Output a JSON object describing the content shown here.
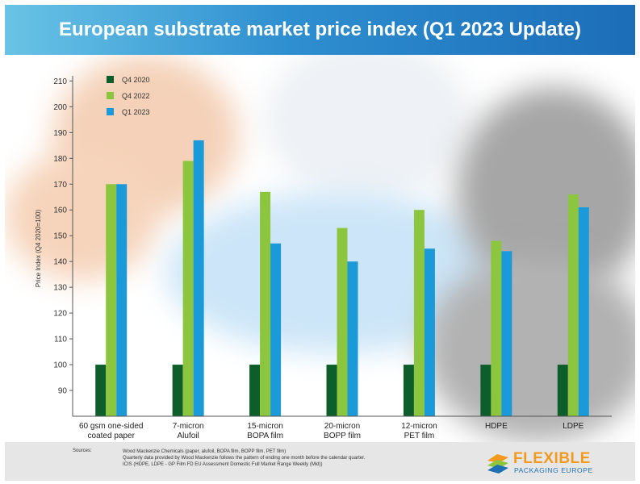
{
  "header": {
    "title": "European substrate market price index (Q1 2023 Update)"
  },
  "colors": {
    "banner_start": "#69c3e6",
    "banner_end": "#1c6db8",
    "footer_bg": "#e6e6e6"
  },
  "chart_data": {
    "type": "bar",
    "title": "",
    "ylabel": "Price Index (Q4 2020=100)",
    "xlabel": "",
    "ylim": [
      80,
      212
    ],
    "yticks": [
      90,
      100,
      110,
      120,
      130,
      140,
      150,
      160,
      170,
      180,
      190,
      200,
      210
    ],
    "grid": false,
    "legend_position": "top-left",
    "categories": [
      [
        "60 gsm one-sided",
        "coated paper"
      ],
      [
        "7-micron",
        "Alufoil"
      ],
      [
        "15-micron",
        "BOPA film"
      ],
      [
        "20-micron",
        "BOPP film"
      ],
      [
        "12-micron",
        "PET film"
      ],
      [
        "HDPE"
      ],
      [
        "LDPE"
      ]
    ],
    "series": [
      {
        "name": "Q4 2020",
        "color": "#0e5e2c",
        "values": [
          100,
          100,
          100,
          100,
          100,
          100,
          100
        ]
      },
      {
        "name": "Q4 2022",
        "color": "#8cc63f",
        "values": [
          170,
          179,
          167,
          153,
          160,
          148,
          166
        ]
      },
      {
        "name": "Q1 2023",
        "color": "#1a9ad8",
        "values": [
          170,
          187,
          147,
          140,
          145,
          144,
          161
        ]
      }
    ]
  },
  "footer": {
    "sources_label": "Sources:",
    "source_lines": [
      "Wood Mackenzie Chemicals (paper, alufoil, BOPA film, BOPP film, PET film)",
      "Quarterly data provided by Wood Mackenzie follows the pattern of ending one month before the calendar quarter.",
      "ICIS (HDPE, LDPE - GP Film FD EU Assessment Domestic Full Market Range Weekly (Mid))"
    ],
    "logo_word": "FLEXIBLE",
    "logo_sub": "PACKAGING EUROPE",
    "logo_icon": "flexible-packaging-logo-icon"
  }
}
